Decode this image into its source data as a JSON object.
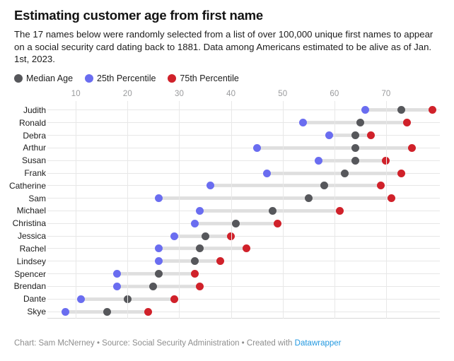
{
  "title": "Estimating customer age from first name",
  "description": "The 17 names below were randomly selected from a list of over 100,000 unique first names to appear on a social security card dating back to 1881. Data among Americans estimated to be alive as of Jan. 1st, 2023.",
  "legend": [
    {
      "key": "median",
      "label": "Median Age",
      "color": "#56575b"
    },
    {
      "key": "p25",
      "label": "25th Percentile",
      "color": "#6a6df0"
    },
    {
      "key": "p75",
      "label": "75th Percentile",
      "color": "#d0212a"
    }
  ],
  "colors": {
    "range_bar": "#d9d9d9",
    "gridline": "#e8e8e8",
    "tick_label": "#999a9c"
  },
  "chart_data": {
    "type": "dot-range",
    "title": "Estimating customer age from first name",
    "xlabel": "",
    "ylabel": "",
    "grid": true,
    "legend_position": "top",
    "x_ticks": [
      10,
      20,
      30,
      40,
      50,
      60,
      70
    ],
    "x_domain": [
      4.5,
      80.4
    ],
    "categories": [
      "Judith",
      "Ronald",
      "Debra",
      "Arthur",
      "Susan",
      "Frank",
      "Catherine",
      "Sam",
      "Michael",
      "Christina",
      "Jessica",
      "Rachel",
      "Lindsey",
      "Spencer",
      "Brendan",
      "Dante",
      "Skye"
    ],
    "series": [
      {
        "name": "25th Percentile",
        "values": [
          66,
          54,
          59,
          45,
          57,
          47,
          36,
          26,
          34,
          33,
          29,
          26,
          26,
          18,
          18,
          11,
          8
        ]
      },
      {
        "name": "Median Age",
        "values": [
          73,
          65,
          64,
          64,
          64,
          62,
          58,
          55,
          48,
          41,
          35,
          34,
          33,
          26,
          25,
          20,
          16
        ]
      },
      {
        "name": "75th Percentile",
        "values": [
          79,
          74,
          67,
          75,
          70,
          73,
          69,
          71,
          61,
          49,
          40,
          43,
          38,
          33,
          34,
          29,
          24
        ]
      }
    ]
  },
  "footer": {
    "text": "Chart: Sam McNerney • Source: Social Security Administration • Created with ",
    "link_label": "Datawrapper",
    "link_color": "#2499e0"
  }
}
